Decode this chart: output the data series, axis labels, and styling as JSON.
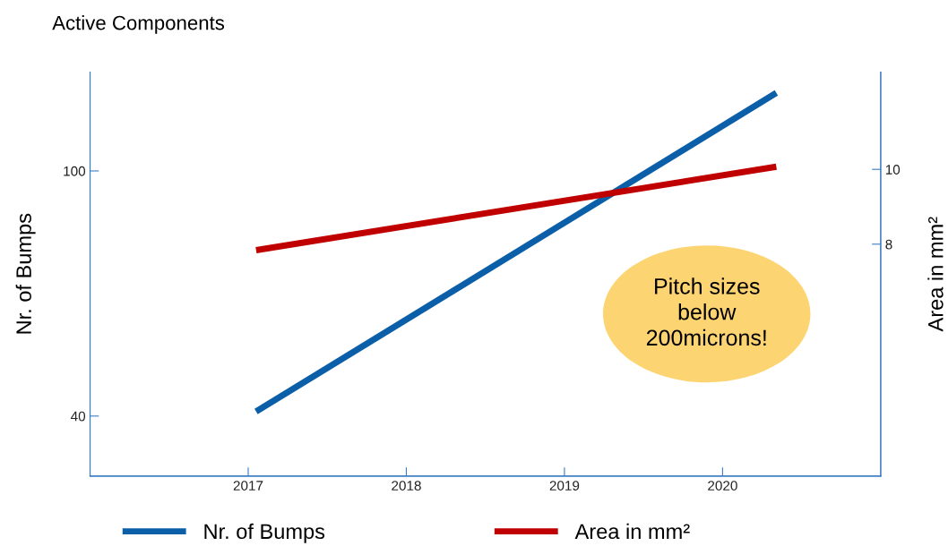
{
  "chart_data": {
    "type": "line",
    "title": "Active Components",
    "xlabel": null,
    "ylabel": "Nr. of Bumps",
    "y2label": "Area in mm²",
    "x": [
      2017.05,
      2020.34
    ],
    "series": [
      {
        "name": "Nr. of Bumps",
        "color": "#0b5ea8",
        "values": [
          41.1,
          119.1
        ]
      },
      {
        "name": "Area in mm²",
        "color": "#c00000",
        "values": [
          7.84,
          10.07
        ],
        "axis": "y2"
      }
    ],
    "xlim": [
      2016,
      2021
    ],
    "xticks": [
      2017,
      2018,
      2019,
      2020
    ],
    "ylim": [
      25.3,
      124.2
    ],
    "yticks": [
      40,
      100
    ],
    "y2lim": [
      1.8,
      12.6
    ],
    "y2ticks": [
      8,
      10
    ],
    "annotations": [
      "Pitch sizes\nbelow\n200microns!"
    ],
    "legend": "bottom",
    "grid": false,
    "marker": "none",
    "line_style": "solid"
  }
}
